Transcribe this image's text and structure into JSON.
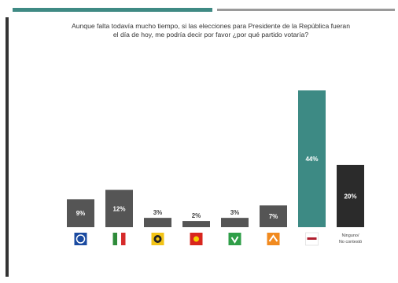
{
  "header": {
    "title_line1": "Aunque falta todavía mucho tiempo, si las elecciones para Presidente de la República fueran",
    "title_line2": "el día de hoy, me podría decir por favor ¿por qué partido votaría?"
  },
  "chart_data": {
    "type": "bar",
    "title": "",
    "categories": [
      "PAN",
      "PRI",
      "PRD",
      "PT",
      "PVEM",
      "MC",
      "MORENA",
      "Ninguno/No contestó"
    ],
    "values": [
      9,
      12,
      3,
      2,
      3,
      7,
      44,
      20
    ],
    "value_labels": [
      "9%",
      "12%",
      "3%",
      "2%",
      "3%",
      "7%",
      "44%",
      "20%"
    ],
    "extra_labels": [
      "",
      "",
      "",
      "",
      "",
      "",
      "",
      "Ninguno/ No contestó"
    ],
    "ylim": [
      0,
      44
    ],
    "grid": false,
    "legend": "none",
    "bar_colors": [
      "#555555",
      "#555555",
      "#555555",
      "#555555",
      "#555555",
      "#555555",
      "#3d8a84",
      "#2b2b2b"
    ],
    "value_label_colors": [
      "#ffffff",
      "#ffffff",
      "#444444",
      "#444444",
      "#444444",
      "#ffffff",
      "#ffffff",
      "#ffffff"
    ],
    "logos": [
      {
        "icon": "pan-logo-icon",
        "bg": "#1a4aa0",
        "fg": "#ffffff"
      },
      {
        "icon": "pri-logo-icon",
        "bg": "#2e8b3a",
        "fg": "#d62b2b"
      },
      {
        "icon": "prd-logo-icon",
        "bg": "#f2c316",
        "fg": "#222222"
      },
      {
        "icon": "pt-logo-icon",
        "bg": "#d8261e",
        "fg": "#f5d000"
      },
      {
        "icon": "pvem-logo-icon",
        "bg": "#2f9e48",
        "fg": "#ffffff"
      },
      {
        "icon": "mc-logo-icon",
        "bg": "#f18a1f",
        "fg": "#ffffff"
      },
      {
        "icon": "morena-logo-icon",
        "bg": "#ffffff",
        "fg": "#b01e2e"
      },
      {
        "icon": "",
        "bg": "",
        "fg": ""
      }
    ]
  }
}
